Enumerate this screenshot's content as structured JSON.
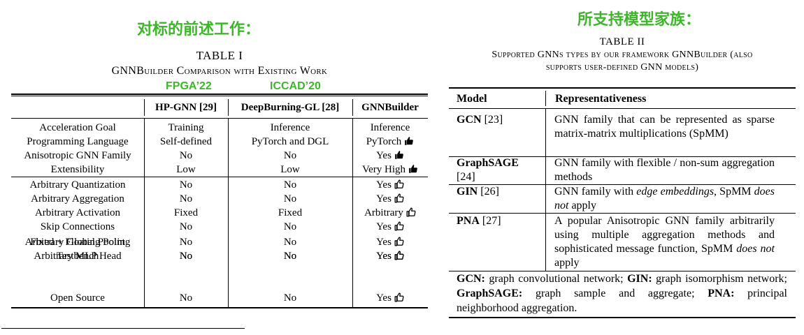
{
  "left": {
    "heading_cn": "对标的前述工作：",
    "caption_title": "TABLE I",
    "caption_sub": "GNNBuilder Comparison with Existing Work",
    "venue_fpga": "FPGA’22",
    "venue_iccad": "ICCAD’20",
    "columns": [
      "",
      "HP-GNN [29]",
      "DeepBurning-GL [28]",
      "GNNBuilder"
    ],
    "rows": [
      {
        "feature": "Acceleration Goal",
        "hp": "Training",
        "db": "Inference",
        "gb": "Inference",
        "icon": ""
      },
      {
        "feature": "Programming Language",
        "hp": "Self-defined",
        "db": "PyTorch and DGL",
        "gb": "PyTorch",
        "icon": "thumbs-up-filled-icon"
      },
      {
        "feature": "Anisotropic GNN Family",
        "hp": "No",
        "db": "No",
        "gb": "Yes",
        "icon": "thumbs-up-filled-icon"
      },
      {
        "feature": "Extensibility",
        "hp": "Low",
        "db": "Low",
        "gb": "Very High",
        "icon": "thumbs-up-filled-icon"
      },
      {
        "feature": "Arbitrary Quantization",
        "hp": "No",
        "db": "No",
        "gb": "Yes",
        "icon": "thumbs-up-outline-icon"
      },
      {
        "feature": "Arbitrary Aggregation",
        "hp": "No",
        "db": "No",
        "gb": "Yes",
        "icon": "thumbs-up-outline-icon"
      },
      {
        "feature": "Arbitrary Activation",
        "hp": "Fixed",
        "db": "Fixed",
        "gb": "Arbitrary",
        "icon": "thumbs-up-outline-icon"
      },
      {
        "feature": "Skip Connections",
        "hp": "No",
        "db": "No",
        "gb": "Yes",
        "icon": "thumbs-up-outline-icon"
      },
      {
        "feature": "Arbitrary Global Pooling",
        "hp": "No",
        "db": "No",
        "gb": "Yes",
        "icon": "thumbs-up-outline-icon"
      },
      {
        "feature": "Arbitrary MLP Head",
        "hp": "No",
        "db": "No",
        "gb": "Yes",
        "icon": "thumbs-up-outline-icon"
      },
      {
        "feature": "Fixed + Floating Point",
        "feature_line2": "Testbench",
        "hp": "No",
        "db": "No",
        "gb": "Yes",
        "icon": "thumbs-up-outline-icon"
      },
      {
        "feature": "Open Source",
        "hp": "No",
        "db": "No",
        "gb": "Yes",
        "icon": "thumbs-up-outline-icon"
      }
    ]
  },
  "right": {
    "heading_cn": "所支持模型家族：",
    "caption_title": "TABLE II",
    "caption_sub_1": "Supported GNNs types by our framework GNNBuilder (also",
    "caption_sub_2": "supports user-defined GNN models)",
    "col_model": "Model",
    "col_repr": "Representativeness",
    "rows": [
      {
        "model": "GCN",
        "ref": " [23]",
        "desc": "GNN family that can be represented as sparse matrix-matrix multiplications (SpMM)"
      },
      {
        "model": "GraphSAGE",
        "ref": "[24]",
        "desc": "GNN family with flexible / non-sum aggregation methods"
      },
      {
        "model": "GIN",
        "ref": " [26]",
        "desc_pre": "GNN family with ",
        "desc_em": "edge embeddings",
        "desc_mid": ", SpMM ",
        "desc_em2": "does not",
        "desc_post": " apply"
      },
      {
        "model": "PNA",
        "ref": " [27]",
        "desc_pre": "A popular Anisotropic GNN family arbitrarily using multiple aggregation methods and sophisticated message function, SpMM ",
        "desc_em": "does not",
        "desc_post": " apply"
      }
    ],
    "note": [
      {
        "term": "GCN:",
        "text": " graph convolutional network; "
      },
      {
        "term": "GIN:",
        "text": " graph isomorphism network; "
      },
      {
        "term": "GraphSAGE:",
        "text": " graph sample and aggregate; "
      },
      {
        "term": "PNA:",
        "text": " principal neighborhood aggregation."
      }
    ]
  }
}
